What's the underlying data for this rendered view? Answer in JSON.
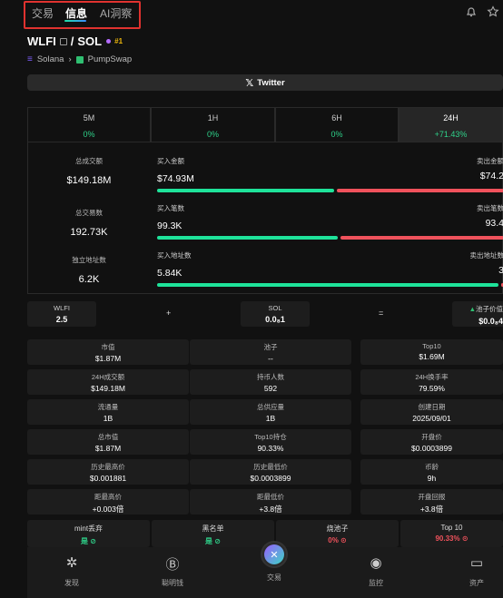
{
  "tabs": [
    "交易",
    "信息",
    "AI洞察"
  ],
  "active_tab": "信息",
  "top_icons": [
    "bell-icon",
    "star-icon"
  ],
  "token": {
    "pair_base": "WLFI",
    "pair_sep": "/",
    "pair_quote": "SOL",
    "rank": "#1",
    "chain": "Solana",
    "dex": "PumpSwap"
  },
  "twitter_label": "Twitter",
  "timeframes": [
    {
      "label": "5M",
      "change": "0%"
    },
    {
      "label": "1H",
      "change": "0%"
    },
    {
      "label": "6H",
      "change": "0%"
    },
    {
      "label": "24H",
      "change": "+71.43%"
    }
  ],
  "active_timeframe": "24H",
  "stats": [
    {
      "left_label": "总成交额",
      "left_value": "$149.18M",
      "buy_label": "买入金额",
      "buy_value": "$74.93M",
      "sell_label": "卖出金额",
      "sell_value": "$74.2",
      "buy_share": 0.51
    },
    {
      "left_label": "总交易数",
      "left_value": "192.73K",
      "buy_label": "买入笔数",
      "buy_value": "99.3K",
      "sell_label": "卖出笔数",
      "sell_value": "93.4",
      "buy_share": 0.52
    },
    {
      "left_label": "独立地址数",
      "left_value": "6.2K",
      "buy_label": "买入地址数",
      "buy_value": "5.84K",
      "sell_label": "卖出地址数",
      "sell_value": "3",
      "buy_share": 0.985
    }
  ],
  "liquidity": {
    "base_label": "WLFI",
    "base_value": "2.5",
    "plus": "+",
    "quote_label": "SOL",
    "quote_value": "0.0₈1",
    "equals": "=",
    "pool_label": "池子价值",
    "pool_value": "$0.0₈4"
  },
  "info_grid": [
    [
      {
        "k": "市值",
        "v": "$1.87M"
      },
      {
        "k": "池子",
        "v": "--"
      },
      {
        "k": "Top10",
        "v": "$1.69M"
      }
    ],
    [
      {
        "k": "24H成交额",
        "v": "$149.18M"
      },
      {
        "k": "持币人数",
        "v": "592"
      },
      {
        "k": "24H换手率",
        "v": "79.59%"
      }
    ],
    [
      {
        "k": "流通量",
        "v": "1B"
      },
      {
        "k": "总供应量",
        "v": "1B"
      },
      {
        "k": "创建日期",
        "v": "2025/09/01"
      }
    ],
    [
      {
        "k": "总市值",
        "v": "$1.87M"
      },
      {
        "k": "Top10持仓",
        "v": "90.33%"
      },
      {
        "k": "开盘价",
        "v": "$0.0003899"
      }
    ],
    [
      {
        "k": "历史最高价",
        "v": "$0.001881"
      },
      {
        "k": "历史最低价",
        "v": "$0.0003899"
      },
      {
        "k": "币龄",
        "v": "9h"
      }
    ],
    [
      {
        "k": "距最高价",
        "v": "+0.003倍"
      },
      {
        "k": "距最低价",
        "v": "+3.8倍"
      },
      {
        "k": "开盘回报",
        "v": "+3.8倍"
      }
    ]
  ],
  "security": [
    {
      "k": "mint丢弃",
      "v": "是 ⊘",
      "status": "good"
    },
    {
      "k": "黑名单",
      "v": "是 ⊘",
      "status": "good"
    },
    {
      "k": "烧池子",
      "v": "0% ⊙",
      "status": "bad"
    },
    {
      "k": "Top 10",
      "v": "90.33% ⊙",
      "status": "bad"
    }
  ],
  "nav": [
    {
      "label": "发现",
      "icon": "discover-icon"
    },
    {
      "label": "聪明钱",
      "icon": "smart-money-icon"
    },
    {
      "label": "交易",
      "icon": "trade-icon"
    },
    {
      "label": "监控",
      "icon": "monitor-icon"
    },
    {
      "label": "资产",
      "icon": "wallet-icon"
    }
  ],
  "colors": {
    "buy": "#1ee39a",
    "sell": "#f0525c",
    "positive": "#2fd28a",
    "highlight": "#e0322f"
  }
}
